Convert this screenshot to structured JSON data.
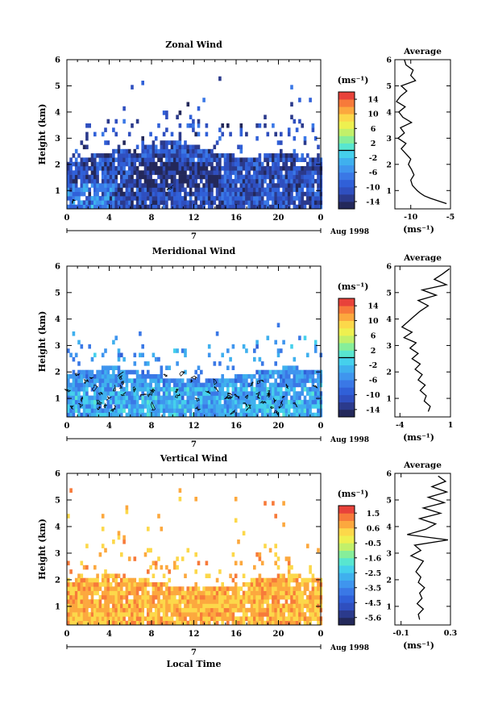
{
  "chart_data": [
    {
      "type": "heatmap",
      "title": "Zonal Wind",
      "ylabel": "Height (km)",
      "xlabel": "",
      "xlim": [
        0,
        24
      ],
      "ylim": [
        0.3,
        6
      ],
      "xticks": [
        "0",
        "4",
        "8",
        "12",
        "16",
        "20",
        "0"
      ],
      "yticks": [
        "1",
        "2",
        "3",
        "4",
        "5",
        "6"
      ],
      "day_label": "7",
      "date_label": "Aug 1998",
      "colorbar": {
        "unit": "(ms⁻¹)",
        "labels": [
          "14",
          "10",
          "6",
          "2",
          "-2",
          "-6",
          "-10",
          "-14"
        ],
        "min": -16,
        "max": 16,
        "zero_line": 0
      },
      "field": {
        "mean": -11,
        "spread": 5,
        "top_base": 2.2,
        "sparse_top": 5.5,
        "contour_low": true
      },
      "profile": {
        "title": "Average",
        "xlabel": "(ms⁻¹)",
        "xticks": [
          "-10",
          "-5"
        ],
        "xlim": [
          -12,
          -5
        ],
        "height": [
          0.5,
          0.6,
          0.7,
          0.8,
          0.9,
          1.0,
          1.2,
          1.4,
          1.6,
          1.8,
          2.0,
          2.2,
          2.4,
          2.6,
          2.8,
          3.0,
          3.2,
          3.4,
          3.6,
          3.8,
          4.0,
          4.2,
          4.4,
          4.6,
          4.8,
          5.0,
          5.2,
          5.4,
          5.6,
          5.8,
          6.0
        ],
        "value": [
          -5.5,
          -6.5,
          -7.5,
          -8.3,
          -8.8,
          -9.2,
          -9.8,
          -10.0,
          -9.6,
          -9.9,
          -10.3,
          -10.0,
          -10.6,
          -11.2,
          -10.6,
          -11.6,
          -10.8,
          -11.3,
          -9.9,
          -11.0,
          -11.5,
          -10.7,
          -11.8,
          -11.3,
          -10.5,
          -11.2,
          -9.4,
          -10.0,
          -9.7,
          -10.6,
          -10.8
        ]
      }
    },
    {
      "type": "heatmap",
      "title": "Meridional Wind",
      "ylabel": "Height (km)",
      "xlabel": "",
      "xlim": [
        0,
        24
      ],
      "ylim": [
        0.3,
        6
      ],
      "xticks": [
        "0",
        "4",
        "8",
        "12",
        "16",
        "20",
        "0"
      ],
      "yticks": [
        "1",
        "2",
        "3",
        "4",
        "5",
        "6"
      ],
      "day_label": "7",
      "date_label": "Aug 1998",
      "colorbar": {
        "unit": "(ms⁻¹)",
        "labels": [
          "14",
          "10",
          "6",
          "2",
          "-2",
          "-6",
          "-10",
          "-14"
        ],
        "min": -16,
        "max": 16,
        "zero_line": 0
      },
      "field": {
        "mean": -5,
        "spread": 4,
        "top_base": 2.0,
        "sparse_top": 4.6,
        "contour_low": true
      },
      "profile": {
        "title": "Average",
        "xlabel": "(ms⁻¹)",
        "xticks": [
          "-4",
          "1"
        ],
        "xlim": [
          -4.5,
          1
        ],
        "height": [
          0.5,
          0.7,
          0.9,
          1.1,
          1.3,
          1.5,
          1.7,
          1.9,
          2.1,
          2.3,
          2.5,
          2.7,
          2.9,
          3.1,
          3.3,
          3.5,
          3.7,
          3.9,
          4.1,
          4.3,
          4.5,
          4.7,
          4.9,
          5.1,
          5.3,
          5.5,
          5.7,
          5.9
        ],
        "value": [
          -1.2,
          -1.0,
          -1.6,
          -1.4,
          -2.0,
          -1.5,
          -2.2,
          -1.8,
          -2.5,
          -2.0,
          -2.8,
          -2.2,
          -3.0,
          -2.4,
          -3.6,
          -2.8,
          -3.8,
          -3.2,
          -2.6,
          -2.0,
          -1.2,
          -2.2,
          -0.4,
          -1.8,
          0.6,
          -0.6,
          0.2,
          0.9
        ]
      }
    },
    {
      "type": "heatmap",
      "title": "Vertical Wind",
      "ylabel": "Height (km)",
      "xlabel": "Local Time",
      "xlim": [
        0,
        24
      ],
      "ylim": [
        0.3,
        6
      ],
      "xticks": [
        "0",
        "4",
        "8",
        "12",
        "16",
        "20",
        "0"
      ],
      "yticks": [
        "1",
        "2",
        "3",
        "4",
        "5",
        "6"
      ],
      "day_label": "7",
      "date_label": "Aug 1998",
      "colorbar": {
        "unit": "(ms⁻¹)",
        "labels": [
          "1.5",
          "0.6",
          "-0.5",
          "-1.6",
          "-2.5",
          "-3.5",
          "-4.5",
          "-5.6"
        ],
        "min": -6.1,
        "max": 2.0,
        "zero_line": null
      },
      "field": {
        "mean": 0.6,
        "spread": 0.7,
        "top_base": 2.0,
        "sparse_top": 5.7,
        "contour_low": false
      },
      "profile": {
        "title": "Average",
        "xlabel": "(ms⁻¹)",
        "xticks": [
          "-0.1",
          "0.3"
        ],
        "xlim": [
          -0.15,
          0.3
        ],
        "height": [
          0.5,
          0.7,
          0.9,
          1.1,
          1.3,
          1.5,
          1.7,
          1.9,
          2.1,
          2.3,
          2.5,
          2.7,
          2.9,
          3.1,
          3.3,
          3.5,
          3.7,
          3.9,
          4.1,
          4.3,
          4.5,
          4.7,
          4.9,
          5.1,
          5.3,
          5.5,
          5.7,
          5.9
        ],
        "value": [
          0.05,
          0.04,
          0.08,
          0.03,
          0.07,
          0.05,
          0.09,
          0.04,
          0.06,
          0.02,
          0.05,
          0.08,
          -0.02,
          0.06,
          0.01,
          0.28,
          -0.05,
          0.1,
          0.18,
          0.05,
          0.22,
          0.08,
          0.25,
          0.12,
          0.27,
          0.15,
          0.26,
          0.2
        ]
      }
    }
  ]
}
